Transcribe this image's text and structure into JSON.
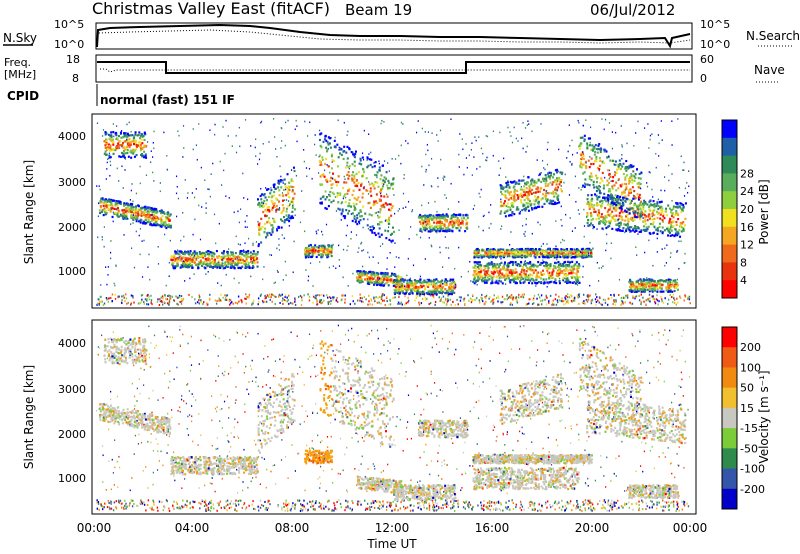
{
  "header": {
    "title": "Christmas Valley East (fitACF)",
    "beam": "Beam 19",
    "date": "06/Jul/2012"
  },
  "top_panels": {
    "nsky_label": "N.Sky",
    "nsearch_label": "N.Search",
    "nsky_ticks": [
      "10^5",
      "10^0"
    ],
    "nsearch_ticks": [
      "10^5",
      "10^0"
    ],
    "freq_label_1": "Freq.",
    "freq_label_2": "[MHz]",
    "freq_ticks": [
      "18",
      "8"
    ],
    "nave_label": "Nave",
    "nave_ticks": [
      "60",
      "0"
    ],
    "cpid_label": "CPID",
    "cpid_value": "normal (fast) 151 IF"
  },
  "chart_data": [
    {
      "type": "heatmap",
      "name": "power",
      "ylabel": "Slant Range [km]",
      "yticks": [
        "1000",
        "2000",
        "3000",
        "4000"
      ],
      "ylim": [
        200,
        4500
      ],
      "xlim": [
        0,
        24
      ],
      "colorbar_label": "Power [dB]",
      "colorbar_ticks": [
        "4",
        "8",
        "12",
        "16",
        "20",
        "24",
        "28"
      ],
      "colorbar_colors": [
        "#0000ff",
        "#1f5fa8",
        "#2e8b57",
        "#5aad5a",
        "#8fce3f",
        "#f0e020",
        "#f5a623",
        "#ef6a1c",
        "#e8330e",
        "#ff0000"
      ]
    },
    {
      "type": "heatmap",
      "name": "velocity",
      "ylabel": "Slant Range [km]",
      "yticks": [
        "1000",
        "2000",
        "3000",
        "4000"
      ],
      "ylim": [
        200,
        4500
      ],
      "xlim": [
        0,
        24
      ],
      "xlabel": "Time UT",
      "xticks": [
        "00:00",
        "04:00",
        "08:00",
        "12:00",
        "16:00",
        "20:00",
        "00:00"
      ],
      "colorbar_label": "Velocity [m s⁻¹]",
      "colorbar_ticks": [
        "200",
        "100",
        "50",
        "15",
        "-15",
        "-50",
        "-100",
        "-200"
      ],
      "colorbar_colors": [
        "#0000c8",
        "#3355aa",
        "#2f8a4e",
        "#7ccc3a",
        "#c8c8c0",
        "#f0c030",
        "#f08a10",
        "#f05a14",
        "#ff0000"
      ]
    }
  ]
}
